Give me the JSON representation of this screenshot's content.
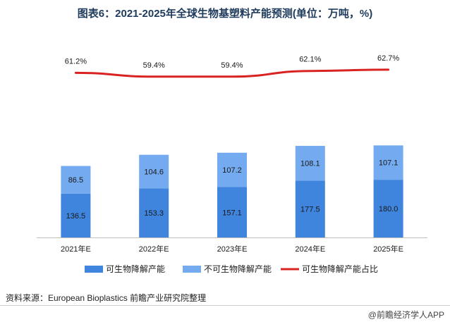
{
  "title": "图表6：2021-2025年全球生物基塑料产能预测(单位：万吨，%)",
  "source": "资料来源：European Bioplastics 前瞻产业研究院整理",
  "credit": "@前瞻经济学人APP",
  "colors": {
    "biodegradable": "#3f84dd",
    "non_biodegradable": "#74aaef",
    "share_line": "#d92323"
  },
  "chart_data": {
    "type": "bar",
    "stacked": true,
    "title": "图表6：2021-2025年全球生物基塑料产能预测(单位：万吨，%)",
    "categories": [
      "2021年E",
      "2022年E",
      "2023年E",
      "2024年E",
      "2025年E"
    ],
    "series": [
      {
        "name": "可生物降解产能",
        "values": [
          136.5,
          153.3,
          157.1,
          177.5,
          180.0
        ],
        "labels": [
          "136.5",
          "153.3",
          "157.1",
          "177.5",
          "180.0"
        ]
      },
      {
        "name": "不可生物降解产能",
        "values": [
          86.5,
          104.6,
          107.2,
          108.1,
          107.1
        ],
        "labels": [
          "86.5",
          "104.6",
          "107.2",
          "108.1",
          "107.1"
        ]
      }
    ],
    "line_series": {
      "name": "可生物降解产能占比",
      "type": "line",
      "values": [
        61.2,
        59.4,
        59.4,
        62.1,
        62.7
      ],
      "labels": [
        "61.2%",
        "59.4%",
        "59.4%",
        "62.1%",
        "62.7%"
      ]
    },
    "ylim": [
      0,
      300
    ],
    "grid": false,
    "legend": "bottom"
  }
}
